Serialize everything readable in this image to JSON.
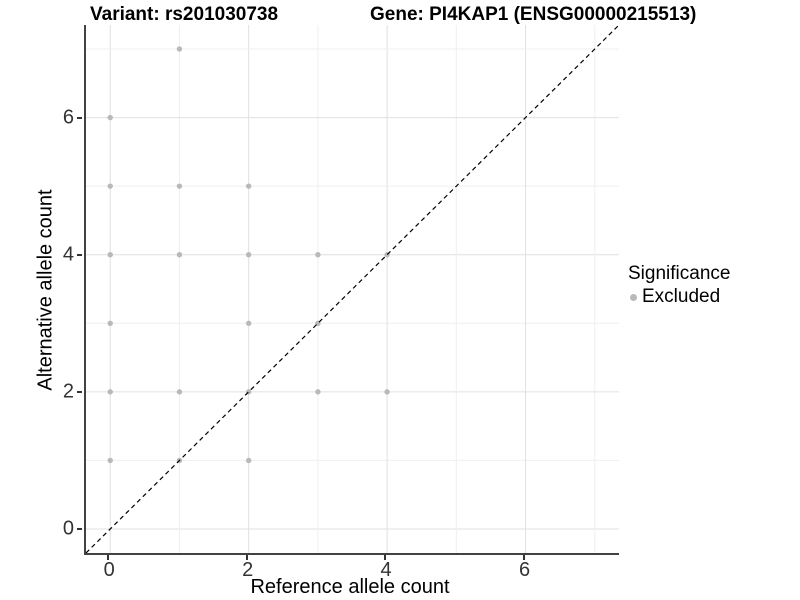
{
  "titles": {
    "variant": "Variant: rs201030738",
    "gene": "Gene: PI4KAP1 (ENSG00000215513)"
  },
  "axes": {
    "x_label": "Reference allele count",
    "y_label": "Alternative allele count"
  },
  "legend": {
    "title": "Significance",
    "items": [
      {
        "label": "Excluded",
        "color": "#b9b9b9",
        "marker": "dot"
      }
    ]
  },
  "colors": {
    "point": "#b9b9b9",
    "grid_major": "#e0e0e0",
    "grid_minor": "#efefef",
    "axis_line": "#424242",
    "diagonal": "#000000",
    "background": "#ffffff"
  },
  "chart_data": {
    "type": "scatter",
    "title": "Variant: rs201030738  |  Gene: PI4KAP1 (ENSG00000215513)",
    "xlabel": "Reference allele count",
    "ylabel": "Alternative allele count",
    "xlim": [
      -0.35,
      7.35
    ],
    "ylim": [
      -0.35,
      7.35
    ],
    "x_ticks": [
      0,
      2,
      4,
      6
    ],
    "y_ticks": [
      0,
      2,
      4,
      6
    ],
    "grid": "on",
    "grid_lines_at": [
      0,
      1,
      2,
      3,
      4,
      5,
      6,
      7
    ],
    "legend_position": "right",
    "series": [
      {
        "name": "Excluded",
        "color": "#b9b9b9",
        "points": [
          [
            0,
            1
          ],
          [
            0,
            2
          ],
          [
            0,
            3
          ],
          [
            0,
            4
          ],
          [
            0,
            5
          ],
          [
            0,
            6
          ],
          [
            1,
            1
          ],
          [
            1,
            2
          ],
          [
            1,
            4
          ],
          [
            1,
            5
          ],
          [
            1,
            7
          ],
          [
            2,
            1
          ],
          [
            2,
            2
          ],
          [
            2,
            3
          ],
          [
            2,
            4
          ],
          [
            2,
            5
          ],
          [
            3,
            2
          ],
          [
            3,
            3
          ],
          [
            3,
            4
          ],
          [
            4,
            2
          ],
          [
            4,
            4
          ]
        ]
      }
    ],
    "reference_line": {
      "style": "dashed",
      "from": [
        -0.35,
        -0.35
      ],
      "to": [
        7.35,
        7.35
      ],
      "color": "#000000"
    }
  }
}
